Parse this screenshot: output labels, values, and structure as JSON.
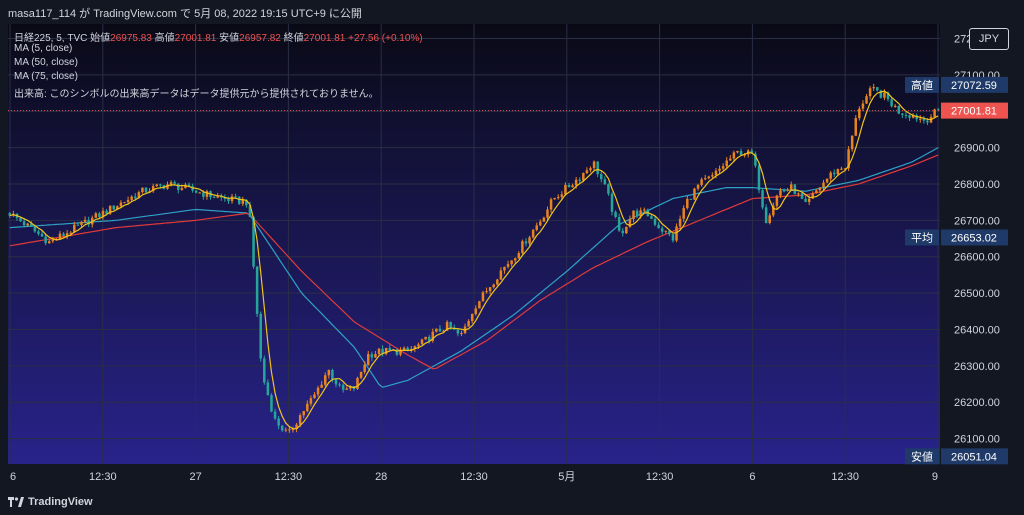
{
  "attribution": "masa117_114 が TradingView.com で 5月 08, 2022 19:15 UTC+9 に公開",
  "brand": {
    "name": "TradingView",
    "logo_icon": "tradingview-logo-icon"
  },
  "legend": {
    "symbol": "日経225, 5, TVC",
    "open_label": "始値",
    "open_value": "26975.83",
    "high_label": "高値",
    "high_value": "27001.81",
    "low_label": "安値",
    "low_value": "26957.82",
    "close_label": "終値",
    "close_value": "27001.81",
    "change": "+27.56 (+0.10%)",
    "ma1": "MA (5, close)",
    "ma2": "MA (50, close)",
    "ma3": "MA (75, close)",
    "volume_note": "出来高: このシンボルの出来高データはデータ提供元から提供されておりません。"
  },
  "currency": "JPY",
  "colors": {
    "background_top": "#0a0a16",
    "background_bottom": "#28238a",
    "up": "#e8841e",
    "down": "#26a69a",
    "ma5": "#f0c419",
    "ma50": "#2ea3c6",
    "ma75": "#e03a3a",
    "last_price": "#ef5350",
    "tag_bg": "#1f3a68"
  },
  "chart_data": {
    "type": "candlestick",
    "interval": "5",
    "x_tick_labels": [
      "6",
      "12:30",
      "27",
      "12:30",
      "28",
      "12:30",
      "5月",
      "12:30",
      "6",
      "12:30",
      "9"
    ],
    "y_tick_labels": [
      "27200.00",
      "27100.00",
      "27000.00",
      "26900.00",
      "26800.00",
      "26700.00",
      "26600.00",
      "26500.00",
      "26400.00",
      "26300.00",
      "26200.00",
      "26100.00"
    ],
    "ylim": [
      26030,
      27240
    ],
    "grid": true,
    "price_tags": [
      {
        "label": "高値",
        "value": "27072.59"
      },
      {
        "label": "",
        "value": "27001.81",
        "highlight": true
      },
      {
        "label": "平均",
        "value": "26653.02"
      },
      {
        "label": "安値",
        "value": "26051.04"
      }
    ],
    "last_price_line": 27001.81,
    "close_path": [
      [
        0,
        26720
      ],
      [
        3,
        26640
      ],
      [
        6,
        26700
      ],
      [
        8,
        26740
      ],
      [
        10,
        26780
      ],
      [
        12,
        26800
      ],
      [
        14,
        26780
      ],
      [
        16,
        26760
      ],
      [
        18,
        26750
      ],
      [
        19,
        26280
      ],
      [
        20,
        26150
      ],
      [
        21,
        26110
      ],
      [
        22,
        26170
      ],
      [
        23,
        26220
      ],
      [
        24,
        26290
      ],
      [
        25,
        26230
      ],
      [
        26,
        26240
      ],
      [
        27,
        26330
      ],
      [
        28,
        26340
      ],
      [
        30,
        26340
      ],
      [
        31,
        26360
      ],
      [
        32,
        26390
      ],
      [
        33,
        26410
      ],
      [
        34,
        26380
      ],
      [
        35,
        26460
      ],
      [
        36,
        26510
      ],
      [
        37,
        26560
      ],
      [
        38,
        26600
      ],
      [
        39,
        26650
      ],
      [
        40,
        26700
      ],
      [
        41,
        26760
      ],
      [
        42,
        26790
      ],
      [
        43,
        26820
      ],
      [
        44,
        26860
      ],
      [
        45,
        26780
      ],
      [
        46,
        26660
      ],
      [
        47,
        26720
      ],
      [
        48,
        26720
      ],
      [
        49,
        26680
      ],
      [
        50,
        26650
      ],
      [
        51,
        26750
      ],
      [
        52,
        26800
      ],
      [
        53,
        26820
      ],
      [
        54,
        26860
      ],
      [
        55,
        26890
      ],
      [
        56,
        26880
      ],
      [
        57,
        26700
      ],
      [
        58,
        26780
      ],
      [
        59,
        26790
      ],
      [
        60,
        26740
      ],
      [
        61,
        26790
      ],
      [
        62,
        26830
      ],
      [
        63,
        26850
      ],
      [
        64,
        27010
      ],
      [
        65,
        27060
      ],
      [
        66,
        27040
      ],
      [
        67,
        27000
      ],
      [
        68,
        26990
      ],
      [
        69,
        26975
      ],
      [
        70,
        27001.81
      ]
    ],
    "series": [
      {
        "name": "MA (5, close)",
        "color": "#f0c419"
      },
      {
        "name": "MA (50, close)",
        "color": "#2ea3c6",
        "path": [
          [
            0,
            26680
          ],
          [
            8,
            26700
          ],
          [
            14,
            26730
          ],
          [
            18,
            26720
          ],
          [
            22,
            26500
          ],
          [
            26,
            26350
          ],
          [
            28,
            26240
          ],
          [
            30,
            26260
          ],
          [
            34,
            26340
          ],
          [
            38,
            26440
          ],
          [
            42,
            26560
          ],
          [
            46,
            26690
          ],
          [
            50,
            26760
          ],
          [
            54,
            26790
          ],
          [
            56,
            26790
          ],
          [
            60,
            26780
          ],
          [
            64,
            26810
          ],
          [
            68,
            26860
          ],
          [
            70,
            26900
          ]
        ]
      },
      {
        "name": "MA (75, close)",
        "color": "#e03a3a",
        "path": [
          [
            0,
            26630
          ],
          [
            8,
            26680
          ],
          [
            14,
            26700
          ],
          [
            18,
            26720
          ],
          [
            22,
            26560
          ],
          [
            26,
            26420
          ],
          [
            30,
            26330
          ],
          [
            32,
            26290
          ],
          [
            36,
            26370
          ],
          [
            40,
            26480
          ],
          [
            44,
            26570
          ],
          [
            48,
            26640
          ],
          [
            52,
            26700
          ],
          [
            56,
            26760
          ],
          [
            60,
            26770
          ],
          [
            64,
            26800
          ],
          [
            68,
            26850
          ],
          [
            70,
            26880
          ]
        ]
      }
    ]
  }
}
